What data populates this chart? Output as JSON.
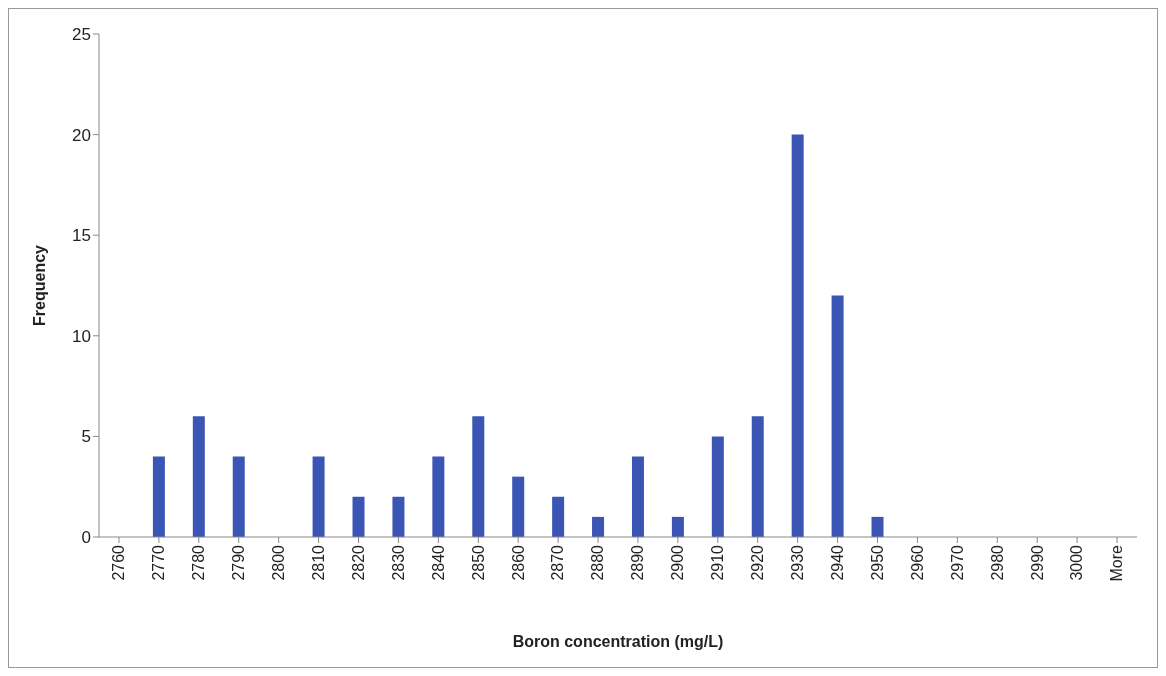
{
  "chart_data": {
    "type": "bar",
    "xlabel": "Boron concentration (mg/L)",
    "ylabel": "Frequency",
    "categories": [
      "2760",
      "2770",
      "2780",
      "2790",
      "2800",
      "2810",
      "2820",
      "2830",
      "2840",
      "2850",
      "2860",
      "2870",
      "2880",
      "2890",
      "2900",
      "2910",
      "2920",
      "2930",
      "2940",
      "2950",
      "2960",
      "2970",
      "2980",
      "2990",
      "3000",
      "More"
    ],
    "values": [
      0,
      4,
      6,
      4,
      0,
      4,
      2,
      2,
      4,
      6,
      3,
      2,
      1,
      4,
      1,
      5,
      6,
      20,
      12,
      1,
      0,
      0,
      0,
      0,
      0,
      0
    ],
    "color": "#3b55b5",
    "ylim": [
      0,
      25
    ],
    "yticks": [
      0,
      5,
      10,
      15,
      20,
      25
    ],
    "grid": false,
    "legend": false
  }
}
